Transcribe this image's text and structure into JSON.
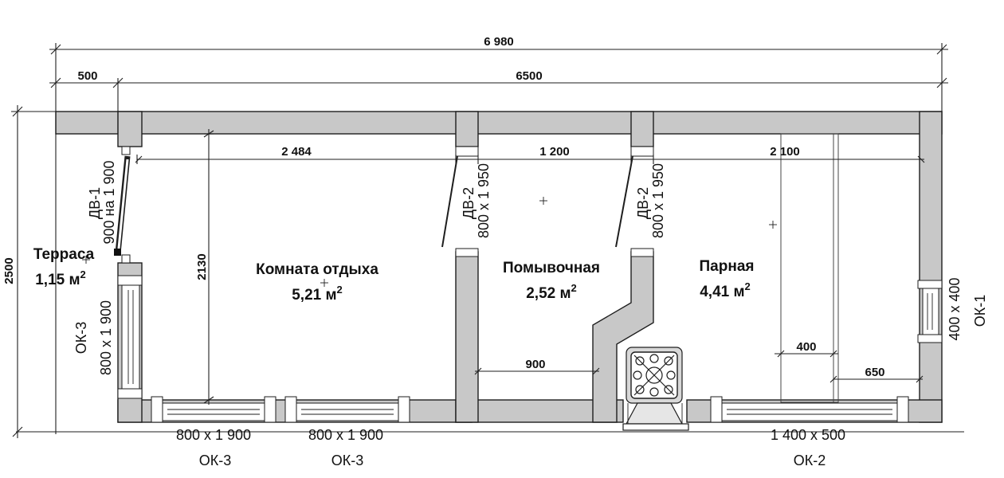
{
  "dimensions": {
    "overall_length": "6 980",
    "terrace_length": "500",
    "house_length": "6500",
    "height": "2500",
    "rest_room_width": "2 484",
    "wash_room_width": "1 200",
    "steam_room_width": "2 100",
    "rest_room_depth": "2130",
    "wash_partition": "900",
    "bench_upper": "400",
    "bench_lower": "650"
  },
  "rooms": [
    {
      "name": "Терраса",
      "area": "1,15 м",
      "unit_sup": "2"
    },
    {
      "name": "Комната отдыха",
      "area": "5,21 м",
      "unit_sup": "2"
    },
    {
      "name": "Помывочная",
      "area": "2,52 м",
      "unit_sup": "2"
    },
    {
      "name": "Парная",
      "area": "4,41 м",
      "unit_sup": "2"
    }
  ],
  "doors": [
    {
      "code": "ДВ-1",
      "size": "900 на 1 900"
    },
    {
      "code": "ДВ-2",
      "size": "800 х 1 950"
    },
    {
      "code": "ДВ-2",
      "size": "800 х 1 950"
    }
  ],
  "windows": [
    {
      "code": "ОК-3",
      "size": "800 х 1 900"
    },
    {
      "code": "ОК-3",
      "size": "800 х 1 900"
    },
    {
      "code": "ОК-3",
      "size": "800 х 1 900"
    },
    {
      "code": "ОК-2",
      "size": "1 400 х 500"
    },
    {
      "code": "ОК-1",
      "size": "400 х 400"
    }
  ]
}
